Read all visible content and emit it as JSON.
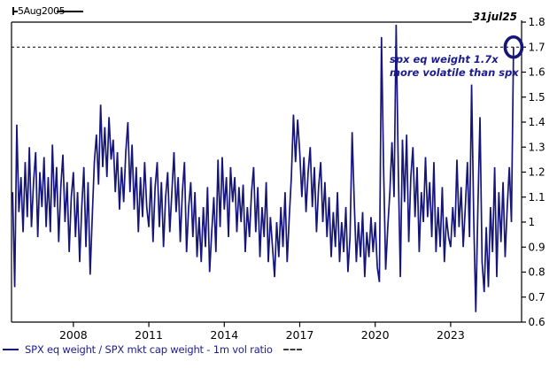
{
  "labels": {
    "start_date": "5Aug2005",
    "end_date": "31jul25",
    "annotation_line1": "spx eq weight 1.7x",
    "annotation_line2": "more volatile than spx"
  },
  "legend": {
    "series_label": "SPX eq weight / SPX mkt cap weight - 1m vol ratio",
    "dash_swatch_icon": "dashed-line-swatch",
    "line_swatch_icon": "solid-line-swatch"
  },
  "chart_data": {
    "type": "line",
    "title": "",
    "xlabel": "",
    "ylabel": "",
    "x_ticks": [
      2008,
      2011,
      2014,
      2017,
      2020,
      2023
    ],
    "y_tick_labels": [
      "0.6",
      "0.7",
      "0.8",
      "0.9",
      "1",
      "1.1",
      "1.2",
      "1.3",
      "1.4",
      "1.5",
      "1.6",
      "1.7",
      "1.8"
    ],
    "xlim": [
      2005.54,
      2025.82
    ],
    "ylim": [
      0.6,
      1.8
    ],
    "grid": false,
    "legend_position": "bottom-left",
    "threshold_line": {
      "value": 1.7,
      "style": "dashed",
      "color": "#000000"
    },
    "start_annotation": "5Aug2005",
    "end_annotation": {
      "date": "31jul25",
      "value": 1.7,
      "marker": "circle"
    },
    "colors": {
      "line": "#15157a",
      "navy_text": "#1c1c8f",
      "axis": "#000000"
    },
    "series": [
      {
        "name": "SPX eq weight / SPX mkt cap weight - 1m vol ratio",
        "frequency": "monthly",
        "x_start_year": 2005.5833,
        "x_step_years": 0.0833333,
        "start": "Aug 2005",
        "end": "Jul 2025",
        "values": [
          1.12,
          0.74,
          1.39,
          1.04,
          1.18,
          0.96,
          1.24,
          1.02,
          1.3,
          0.98,
          1.16,
          1.28,
          0.94,
          1.2,
          1.06,
          1.26,
          0.98,
          1.18,
          0.96,
          1.31,
          1.06,
          1.22,
          0.92,
          1.14,
          1.27,
          1.0,
          1.16,
          0.88,
          1.1,
          1.2,
          0.94,
          1.12,
          0.84,
          1.06,
          1.22,
          0.9,
          1.16,
          0.79,
          1.02,
          1.24,
          1.35,
          1.15,
          1.47,
          1.22,
          1.38,
          1.18,
          1.42,
          1.25,
          1.33,
          1.12,
          1.28,
          1.05,
          1.22,
          1.08,
          1.28,
          1.4,
          1.12,
          1.31,
          1.05,
          1.22,
          0.96,
          1.18,
          1.02,
          1.24,
          1.06,
          0.98,
          1.18,
          0.92,
          1.14,
          1.24,
          0.98,
          1.16,
          0.9,
          1.1,
          1.2,
          0.96,
          1.12,
          1.28,
          1.04,
          1.18,
          0.92,
          1.12,
          1.24,
          0.88,
          1.06,
          1.16,
          0.94,
          1.12,
          0.86,
          1.02,
          0.84,
          1.06,
          0.9,
          1.14,
          0.8,
          0.96,
          1.1,
          0.88,
          1.25,
          0.98,
          1.26,
          1.05,
          1.18,
          0.94,
          1.22,
          1.08,
          1.18,
          0.96,
          1.14,
          1.0,
          1.15,
          0.88,
          1.06,
          0.94,
          1.12,
          1.22,
          0.96,
          1.14,
          0.86,
          1.06,
          0.94,
          1.16,
          0.84,
          1.02,
          0.9,
          0.78,
          1.0,
          0.86,
          1.06,
          0.9,
          1.12,
          0.84,
          1.02,
          1.18,
          1.43,
          1.24,
          1.41,
          1.28,
          1.1,
          1.26,
          1.04,
          1.2,
          1.3,
          1.06,
          1.22,
          0.96,
          1.14,
          1.24,
          1.0,
          1.16,
          0.94,
          1.1,
          0.86,
          1.04,
          0.9,
          1.12,
          0.84,
          1.0,
          0.88,
          1.06,
          0.8,
          0.94,
          1.36,
          1.08,
          0.84,
          1.0,
          0.86,
          1.04,
          0.78,
          0.96,
          0.86,
          1.02,
          0.88,
          1.0,
          0.82,
          0.76,
          1.74,
          1.22,
          0.81,
          0.98,
          1.12,
          1.32,
          1.1,
          1.79,
          1.22,
          0.78,
          1.33,
          1.08,
          1.35,
          0.92,
          1.18,
          1.3,
          1.02,
          1.22,
          0.88,
          1.12,
          1.0,
          1.26,
          1.02,
          1.16,
          0.94,
          1.24,
          0.88,
          1.06,
          0.9,
          1.14,
          0.84,
          1.02,
          0.94,
          0.9,
          1.06,
          0.94,
          1.25,
          0.98,
          1.14,
          0.9,
          1.06,
          1.24,
          0.94,
          1.55,
          1.02,
          0.64,
          1.06,
          1.42,
          0.84,
          0.72,
          0.98,
          0.74,
          1.06,
          0.88,
          1.22,
          0.78,
          1.12,
          0.92,
          1.16,
          0.86,
          1.06,
          1.22,
          1.0,
          1.7
        ]
      }
    ]
  }
}
